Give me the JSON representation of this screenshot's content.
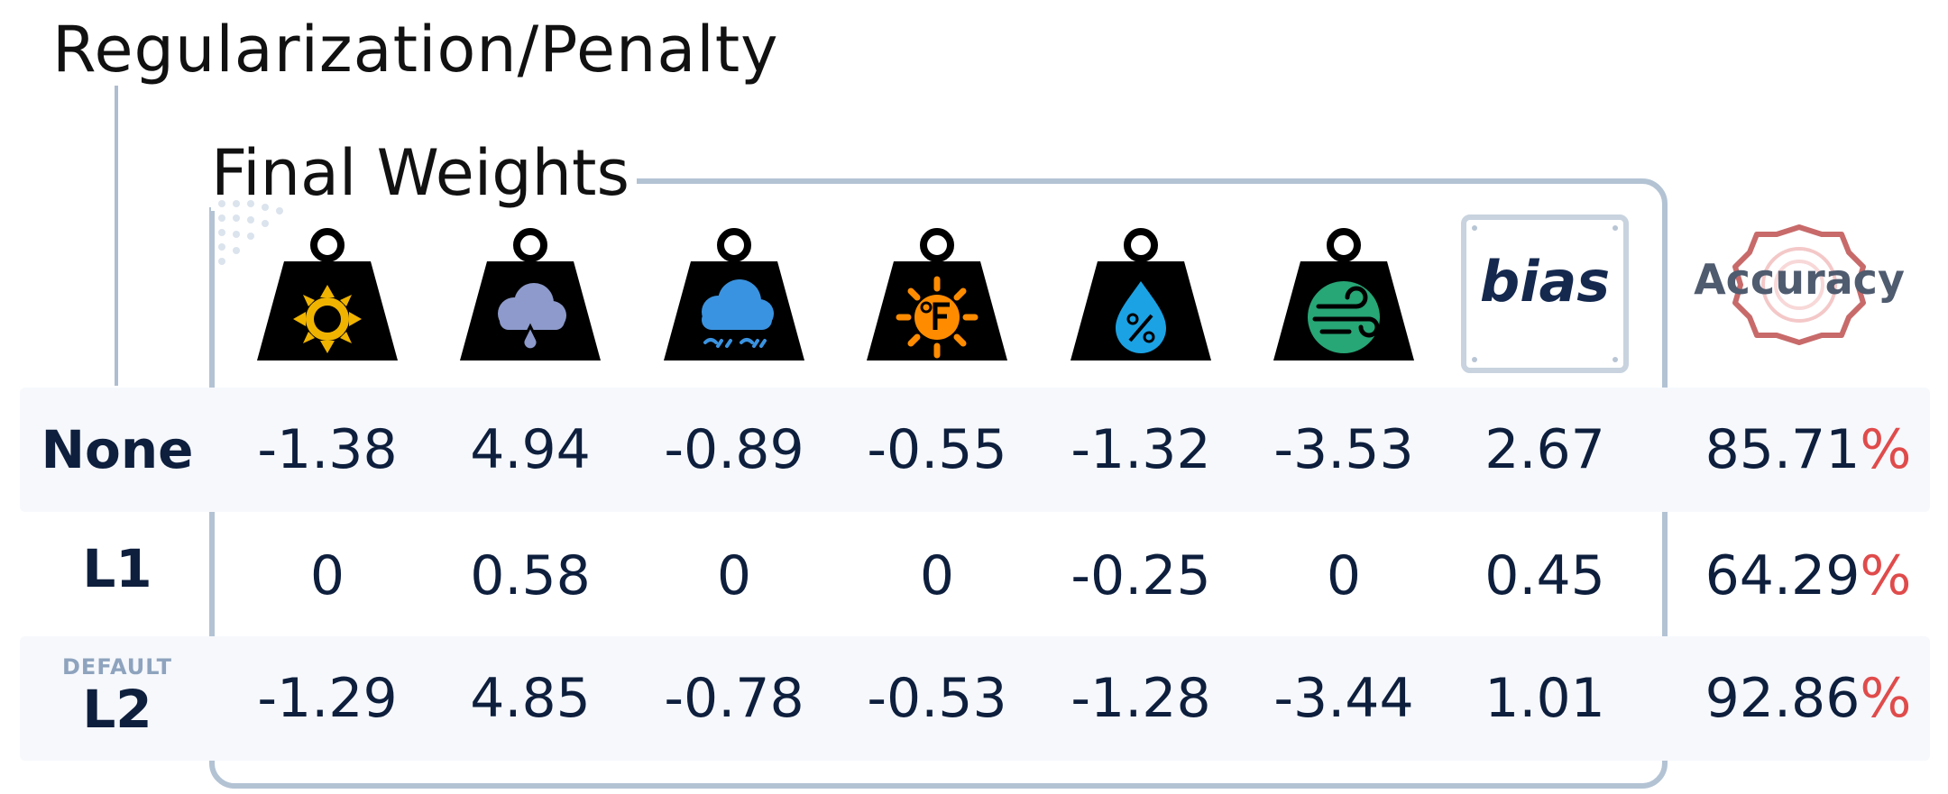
{
  "titles": {
    "regularization": "Regularization/Penalty",
    "final_weights": "Final Weights"
  },
  "columns": [
    {
      "icon": "sun-weight-icon",
      "color": "#f0b400"
    },
    {
      "icon": "rain-weight-icon",
      "color": "#8d9acb"
    },
    {
      "icon": "snow-weight-icon",
      "color": "#3a93e0"
    },
    {
      "icon": "temperature-weight-icon",
      "color": "#ff8c00"
    },
    {
      "icon": "humidity-weight-icon",
      "color": "#1ba2e4"
    },
    {
      "icon": "wind-weight-icon",
      "color": "#27a676"
    },
    {
      "label": "bias"
    },
    {
      "label": "Accuracy"
    }
  ],
  "rows": [
    {
      "label": "None",
      "tag": "",
      "values": [
        "-1.38",
        "4.94",
        "-0.89",
        "-0.55",
        "-1.32",
        "-3.53",
        "2.67"
      ],
      "accuracy": "85.71",
      "pct": "%"
    },
    {
      "label": "L1",
      "tag": "",
      "values": [
        "0",
        "0.58",
        "0",
        "0",
        "-0.25",
        "0",
        "0.45"
      ],
      "accuracy": "64.29",
      "pct": "%"
    },
    {
      "label": "L2",
      "tag": "DEFAULT",
      "values": [
        "-1.29",
        "4.85",
        "-0.78",
        "-0.53",
        "-1.28",
        "-3.44",
        "1.01"
      ],
      "accuracy": "92.86",
      "pct": "%"
    }
  ],
  "colors": {
    "text": "#0e1f3d",
    "accent_percent": "#e04b4b",
    "box_border": "#b3c3d4",
    "row_band": "#f6f8fc"
  }
}
